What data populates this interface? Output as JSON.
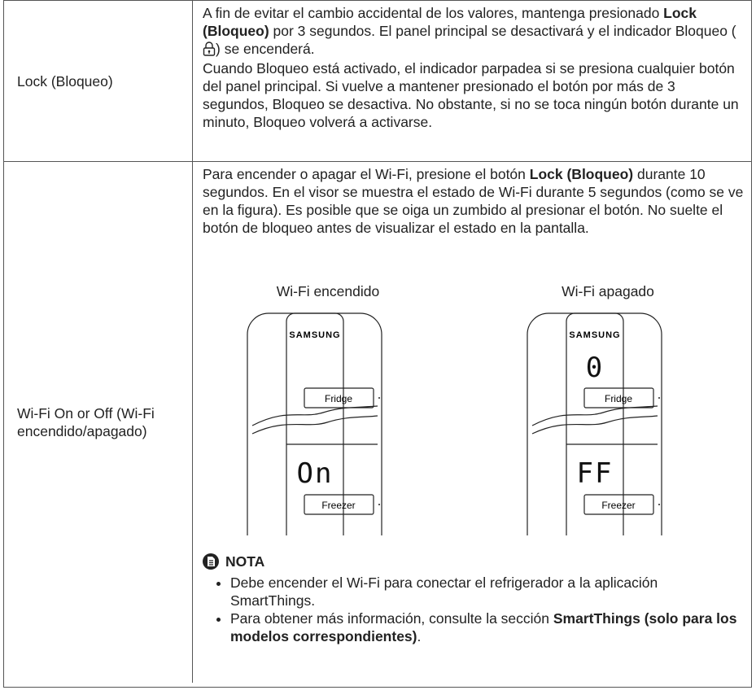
{
  "table": {
    "rows": [
      {
        "label": "Lock (Bloqueo)",
        "paragraphs": [
          [
            "A fin de evitar el cambio accidental de los valores, mantenga presionado ",
            "Lock (Bloqueo)",
            " por 3 segundos. El panel principal se desactivará y el indicador Bloqueo (",
            ") se encenderá."
          ],
          [
            "Cuando Bloqueo está activado, el indicador parpadea si se presiona cualquier botón del panel principal. Si vuelve a mantener presionado el botón por más de 3 segundos, Bloqueo se desactiva. No obstante, si no se toca ningún botón durante un minuto, Bloqueo volverá a activarse."
          ]
        ]
      },
      {
        "label": "Wi-Fi On or Off (Wi-Fi encendido/apagado)",
        "paragraphs": [
          [
            "Para encender o apagar el Wi-Fi, presione el botón ",
            "Lock (Bloqueo)",
            " durante 10 segundos. En el visor se muestra el estado de Wi-Fi durante 5 segundos (como se ve en la figura). Es posible que se oiga un zumbido al presionar el botón. No suelte el botón de bloqueo antes de visualizar el estado en la pantalla."
          ]
        ],
        "figures": [
          {
            "caption": "Wi-Fi encendido",
            "brand": "SAMSUNG",
            "top_display": null,
            "fridge": "Fridge",
            "bottom_display": "On",
            "freezer": "Freezer"
          },
          {
            "caption": "Wi-Fi apagado",
            "brand": "SAMSUNG",
            "top_display": "0",
            "fridge": "Fridge",
            "bottom_display": "FF",
            "freezer": "Freezer"
          }
        ],
        "note": {
          "title": "NOTA",
          "items": [
            [
              "Debe encender el Wi-Fi para conectar el refrigerador a la aplicación SmartThings."
            ],
            [
              "Para obtener más información, consulte la sección ",
              "SmartThings (solo para los modelos correspondientes)",
              "."
            ]
          ]
        }
      }
    ]
  }
}
